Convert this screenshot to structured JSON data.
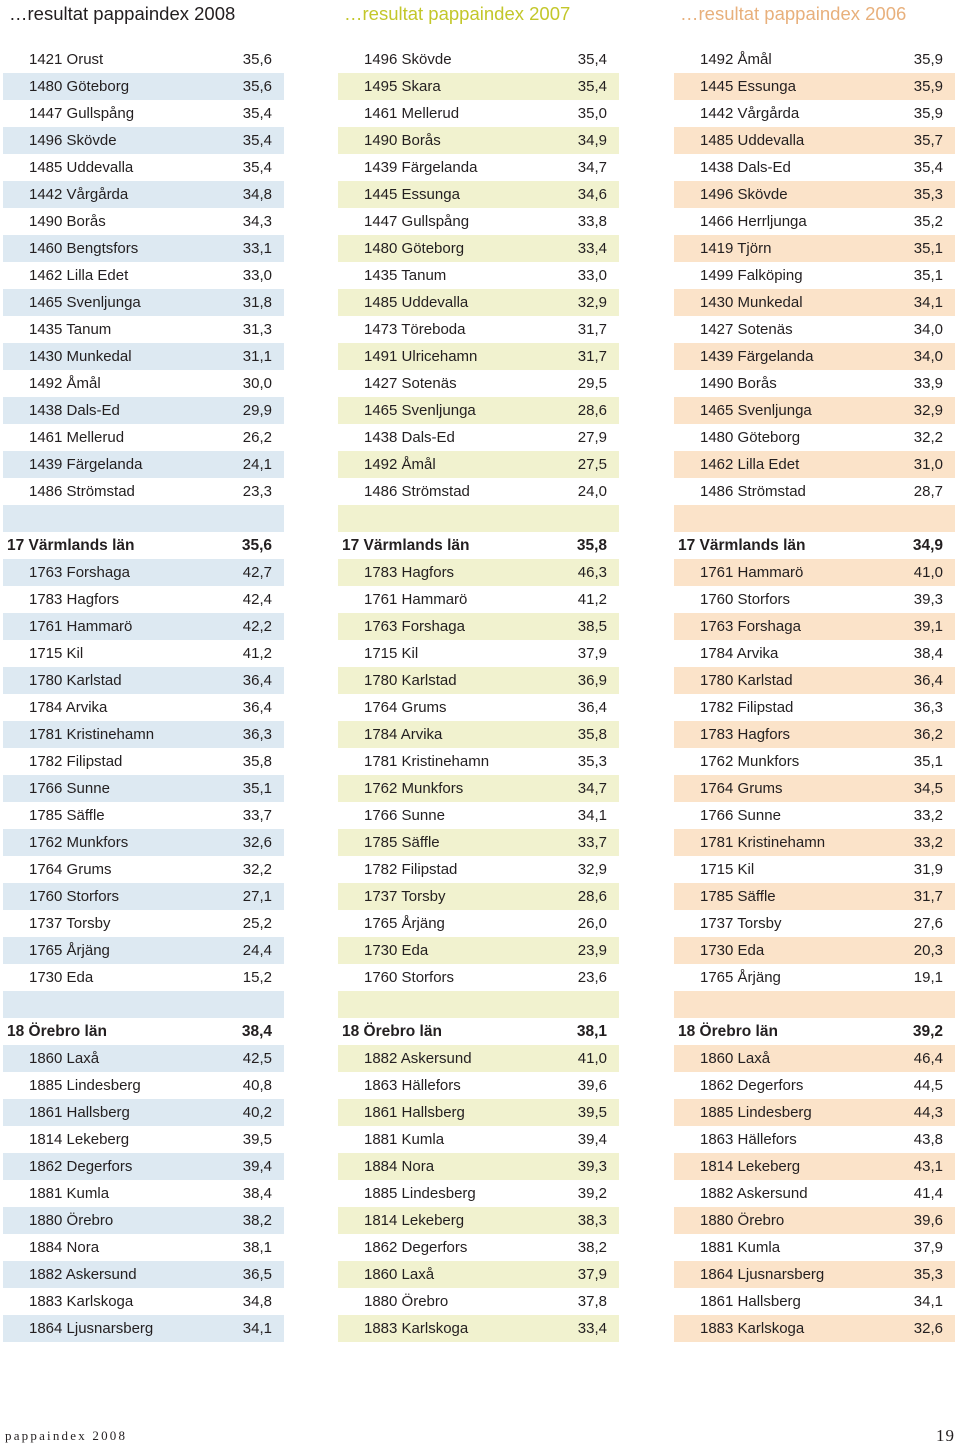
{
  "colors": {
    "c2008": {
      "header": "#231f20",
      "tint": "#dde9f2"
    },
    "c2007": {
      "header": "#c3c72a",
      "tint": "#f1f2cf"
    },
    "c2006": {
      "header": "#e8b07c",
      "tint": "#fbe3c9"
    }
  },
  "columns": [
    {
      "key": "c2008",
      "header": "…resultat pappaindex 2008",
      "municipalities": [
        [
          "1421 Orust",
          "35,6"
        ],
        [
          "1480 Göteborg",
          "35,6"
        ],
        [
          "1447 Gullspång",
          "35,4"
        ],
        [
          "1496 Skövde",
          "35,4"
        ],
        [
          "1485 Uddevalla",
          "35,4"
        ],
        [
          "1442 Vårgårda",
          "34,8"
        ],
        [
          "1490 Borås",
          "34,3"
        ],
        [
          "1460 Bengtsfors",
          "33,1"
        ],
        [
          "1462 Lilla Edet",
          "33,0"
        ],
        [
          "1465 Svenljunga",
          "31,8"
        ],
        [
          "1435 Tanum",
          "31,3"
        ],
        [
          "1430 Munkedal",
          "31,1"
        ],
        [
          "1492 Åmål",
          "30,0"
        ],
        [
          "1438 Dals-Ed",
          "29,9"
        ],
        [
          "1461 Mellerud",
          "26,2"
        ],
        [
          "1439 Färgelanda",
          "24,1"
        ],
        [
          "1486 Strömstad",
          "23,3"
        ]
      ],
      "varmland": {
        "title": "17 Värmlands län",
        "value": "35,6",
        "rows": [
          [
            "1763 Forshaga",
            "42,7"
          ],
          [
            "1783 Hagfors",
            "42,4"
          ],
          [
            "1761 Hammarö",
            "42,2"
          ],
          [
            "1715 Kil",
            "41,2"
          ],
          [
            "1780 Karlstad",
            "36,4"
          ],
          [
            "1784 Arvika",
            "36,4"
          ],
          [
            "1781 Kristinehamn",
            "36,3"
          ],
          [
            "1782 Filipstad",
            "35,8"
          ],
          [
            "1766 Sunne",
            "35,1"
          ],
          [
            "1785 Säffle",
            "33,7"
          ],
          [
            "1762 Munkfors",
            "32,6"
          ],
          [
            "1764 Grums",
            "32,2"
          ],
          [
            "1760 Storfors",
            "27,1"
          ],
          [
            "1737 Torsby",
            "25,2"
          ],
          [
            "1765 Årjäng",
            "24,4"
          ],
          [
            "1730 Eda",
            "15,2"
          ]
        ]
      },
      "orebro": {
        "title": "18 Örebro län",
        "value": "38,4",
        "rows": [
          [
            "1860 Laxå",
            "42,5"
          ],
          [
            "1885 Lindesberg",
            "40,8"
          ],
          [
            "1861 Hallsberg",
            "40,2"
          ],
          [
            "1814 Lekeberg",
            "39,5"
          ],
          [
            "1862 Degerfors",
            "39,4"
          ],
          [
            "1881 Kumla",
            "38,4"
          ],
          [
            "1880 Örebro",
            "38,2"
          ],
          [
            "1884 Nora",
            "38,1"
          ],
          [
            "1882 Askersund",
            "36,5"
          ],
          [
            "1883 Karlskoga",
            "34,8"
          ],
          [
            "1864 Ljusnarsberg",
            "34,1"
          ]
        ]
      }
    },
    {
      "key": "c2007",
      "header": "…resultat pappaindex 2007",
      "municipalities": [
        [
          "1496 Skövde",
          "35,4"
        ],
        [
          "1495 Skara",
          "35,4"
        ],
        [
          "1461 Mellerud",
          "35,0"
        ],
        [
          "1490 Borås",
          "34,9"
        ],
        [
          "1439 Färgelanda",
          "34,7"
        ],
        [
          "1445 Essunga",
          "34,6"
        ],
        [
          "1447 Gullspång",
          "33,8"
        ],
        [
          "1480 Göteborg",
          "33,4"
        ],
        [
          "1435 Tanum",
          "33,0"
        ],
        [
          "1485 Uddevalla",
          "32,9"
        ],
        [
          "1473 Töreboda",
          "31,7"
        ],
        [
          "1491 Ulricehamn",
          "31,7"
        ],
        [
          "1427 Sotenäs",
          "29,5"
        ],
        [
          "1465 Svenljunga",
          "28,6"
        ],
        [
          "1438 Dals-Ed",
          "27,9"
        ],
        [
          "1492 Åmål",
          "27,5"
        ],
        [
          "1486 Strömstad",
          "24,0"
        ]
      ],
      "varmland": {
        "title": "17 Värmlands län",
        "value": "35,8",
        "rows": [
          [
            "1783 Hagfors",
            "46,3"
          ],
          [
            "1761 Hammarö",
            "41,2"
          ],
          [
            "1763 Forshaga",
            "38,5"
          ],
          [
            "1715 Kil",
            "37,9"
          ],
          [
            "1780 Karlstad",
            "36,9"
          ],
          [
            "1764 Grums",
            "36,4"
          ],
          [
            "1784 Arvika",
            "35,8"
          ],
          [
            "1781 Kristinehamn",
            "35,3"
          ],
          [
            "1762 Munkfors",
            "34,7"
          ],
          [
            "1766 Sunne",
            "34,1"
          ],
          [
            "1785 Säffle",
            "33,7"
          ],
          [
            "1782 Filipstad",
            "32,9"
          ],
          [
            "1737 Torsby",
            "28,6"
          ],
          [
            "1765 Årjäng",
            "26,0"
          ],
          [
            "1730 Eda",
            "23,9"
          ],
          [
            "1760 Storfors",
            "23,6"
          ]
        ]
      },
      "orebro": {
        "title": "18 Örebro län",
        "value": "38,1",
        "rows": [
          [
            "1882 Askersund",
            "41,0"
          ],
          [
            "1863 Hällefors",
            "39,6"
          ],
          [
            "1861 Hallsberg",
            "39,5"
          ],
          [
            "1881 Kumla",
            "39,4"
          ],
          [
            "1884 Nora",
            "39,3"
          ],
          [
            "1885 Lindesberg",
            "39,2"
          ],
          [
            "1814 Lekeberg",
            "38,3"
          ],
          [
            "1862 Degerfors",
            "38,2"
          ],
          [
            "1860 Laxå",
            "37,9"
          ],
          [
            "1880 Örebro",
            "37,8"
          ],
          [
            "1883 Karlskoga",
            "33,4"
          ]
        ]
      }
    },
    {
      "key": "c2006",
      "header": "…resultat pappaindex 2006",
      "municipalities": [
        [
          "1492 Åmål",
          "35,9"
        ],
        [
          "1445 Essunga",
          "35,9"
        ],
        [
          "1442 Vårgårda",
          "35,9"
        ],
        [
          "1485 Uddevalla",
          "35,7"
        ],
        [
          "1438 Dals-Ed",
          "35,4"
        ],
        [
          "1496 Skövde",
          "35,3"
        ],
        [
          "1466 Herrljunga",
          "35,2"
        ],
        [
          "1419 Tjörn",
          "35,1"
        ],
        [
          "1499 Falköping",
          "35,1"
        ],
        [
          "1430 Munkedal",
          "34,1"
        ],
        [
          "1427 Sotenäs",
          "34,0"
        ],
        [
          "1439 Färgelanda",
          "34,0"
        ],
        [
          "1490 Borås",
          "33,9"
        ],
        [
          "1465 Svenljunga",
          "32,9"
        ],
        [
          "1480 Göteborg",
          "32,2"
        ],
        [
          "1462 Lilla Edet",
          "31,0"
        ],
        [
          "1486 Strömstad",
          "28,7"
        ]
      ],
      "varmland": {
        "title": "17 Värmlands län",
        "value": "34,9",
        "rows": [
          [
            "1761 Hammarö",
            "41,0"
          ],
          [
            "1760 Storfors",
            "39,3"
          ],
          [
            "1763 Forshaga",
            "39,1"
          ],
          [
            "1784 Arvika",
            "38,4"
          ],
          [
            "1780 Karlstad",
            "36,4"
          ],
          [
            "1782 Filipstad",
            "36,3"
          ],
          [
            "1783 Hagfors",
            "36,2"
          ],
          [
            "1762 Munkfors",
            "35,1"
          ],
          [
            "1764 Grums",
            "34,5"
          ],
          [
            "1766 Sunne",
            "33,2"
          ],
          [
            "1781 Kristinehamn",
            "33,2"
          ],
          [
            "1715 Kil",
            "31,9"
          ],
          [
            "1785 Säffle",
            "31,7"
          ],
          [
            "1737 Torsby",
            "27,6"
          ],
          [
            "1730 Eda",
            "20,3"
          ],
          [
            "1765 Årjäng",
            "19,1"
          ]
        ]
      },
      "orebro": {
        "title": "18 Örebro län",
        "value": "39,2",
        "rows": [
          [
            "1860 Laxå",
            "46,4"
          ],
          [
            "1862 Degerfors",
            "44,5"
          ],
          [
            "1885 Lindesberg",
            "44,3"
          ],
          [
            "1863 Hällefors",
            "43,8"
          ],
          [
            "1814 Lekeberg",
            "43,1"
          ],
          [
            "1882 Askersund",
            "41,4"
          ],
          [
            "1880 Örebro",
            "39,6"
          ],
          [
            "1881 Kumla",
            "37,9"
          ],
          [
            "1864 Ljusnarsberg",
            "35,3"
          ],
          [
            "1861 Hallsberg",
            "34,1"
          ],
          [
            "1883 Karlskoga",
            "32,6"
          ]
        ]
      }
    }
  ],
  "footer": {
    "left": "pappaindex 2008",
    "right": "19"
  }
}
